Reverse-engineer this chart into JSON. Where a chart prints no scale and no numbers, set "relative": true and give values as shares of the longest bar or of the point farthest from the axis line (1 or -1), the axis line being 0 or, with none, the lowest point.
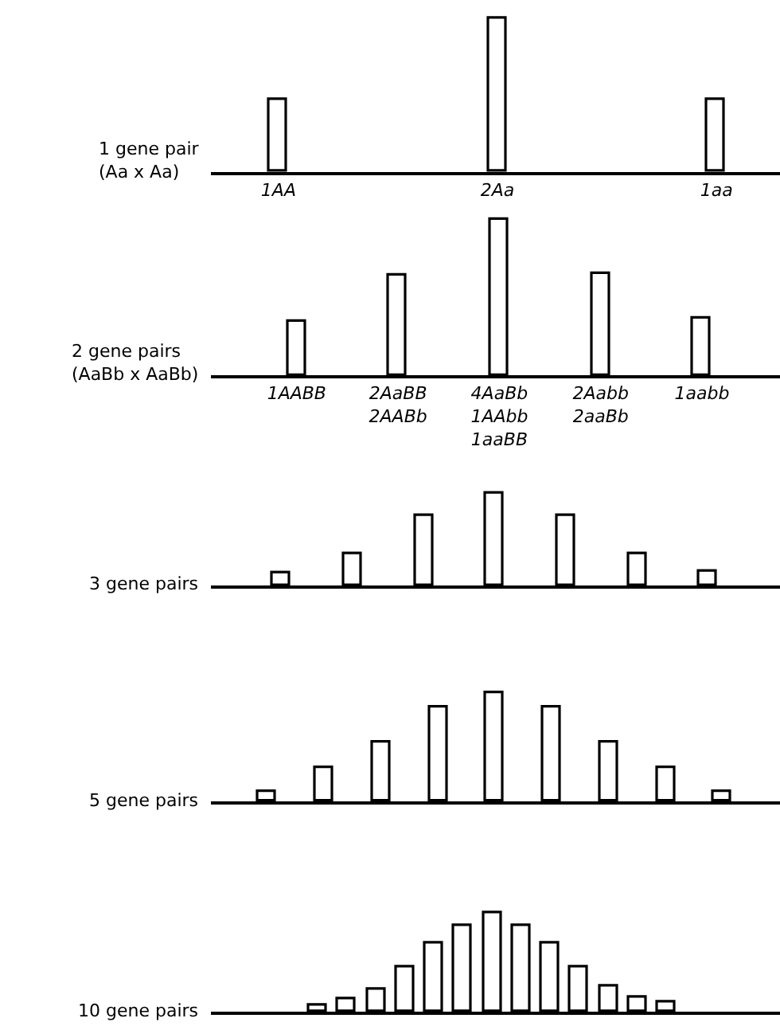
{
  "chart_data": [
    {
      "type": "bar",
      "relative": true,
      "ylabel": "1 gene pair\n(Aa x Aa)",
      "categories": [
        "1AA",
        "2Aa",
        "1aa"
      ],
      "values": [
        0.47,
        1,
        0.47
      ],
      "color": "#ffffff"
    },
    {
      "type": "bar",
      "relative": true,
      "ylabel": "2 gene pairs\n(AaBb x AaBb)",
      "categories": [
        "1AABB",
        "2AaBB\n2AABb",
        "4AaBb\n1AAbb\n1aaBB",
        "2Aabb\n2aaBb",
        "1aabb"
      ],
      "values": [
        0.35,
        0.64,
        1,
        0.65,
        0.37
      ],
      "color": "#ffffff"
    },
    {
      "type": "bar",
      "relative": true,
      "ylabel": "3 gene pairs",
      "categories": [
        null,
        null,
        null,
        null,
        null,
        null,
        null
      ],
      "values": [
        0.13,
        0.34,
        0.76,
        1,
        0.76,
        0.35,
        0.15
      ],
      "color": "#ffffff"
    },
    {
      "type": "bar",
      "relative": true,
      "ylabel": "5 gene pairs",
      "categories": [
        null,
        null,
        null,
        null,
        null,
        null,
        null,
        null,
        null
      ],
      "values": [
        0.09,
        0.3,
        0.54,
        0.86,
        1,
        0.86,
        0.54,
        0.3,
        0.09
      ],
      "color": "#ffffff"
    },
    {
      "type": "bar",
      "relative": true,
      "ylabel": "10 gene pairs",
      "categories": [
        null,
        null,
        null,
        null,
        null,
        null,
        null,
        null,
        null,
        null,
        null,
        null,
        null
      ],
      "values": [
        0.06,
        0.13,
        0.22,
        0.45,
        0.69,
        0.87,
        1,
        0.87,
        0.69,
        0.46,
        0.25,
        0.15,
        0.09
      ],
      "color": "#ffffff"
    }
  ]
}
